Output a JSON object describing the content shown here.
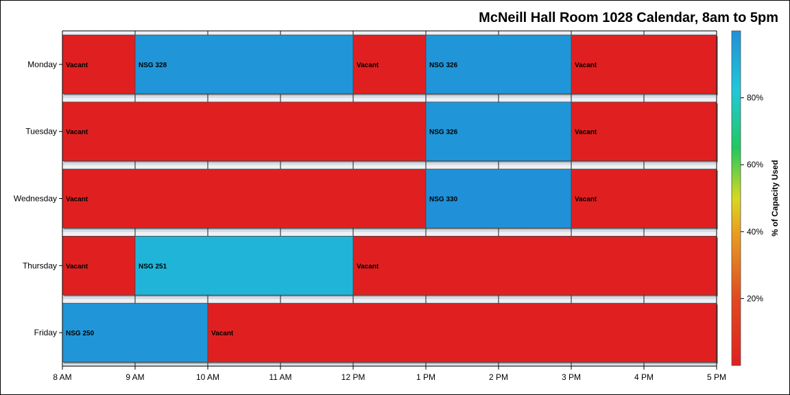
{
  "chart_data": {
    "type": "bar",
    "orientation": "horizontal",
    "title": "McNeill Hall Room 1028 Calendar, 8am to 5pm",
    "x_range": [
      8,
      17
    ],
    "x_ticks": [
      {
        "value": 8,
        "label": "8 AM"
      },
      {
        "value": 9,
        "label": "9 AM"
      },
      {
        "value": 10,
        "label": "10 AM"
      },
      {
        "value": 11,
        "label": "11 AM"
      },
      {
        "value": 12,
        "label": "12 PM"
      },
      {
        "value": 13,
        "label": "1 PM"
      },
      {
        "value": 14,
        "label": "2 PM"
      },
      {
        "value": 15,
        "label": "3 PM"
      },
      {
        "value": 16,
        "label": "4 PM"
      },
      {
        "value": 17,
        "label": "5 PM"
      }
    ],
    "categories": [
      "Monday",
      "Tuesday",
      "Wednesday",
      "Thursday",
      "Friday"
    ],
    "blocks": [
      {
        "day": "Monday",
        "start": 8,
        "end": 9,
        "label": "Vacant",
        "capacity_pct": 0
      },
      {
        "day": "Monday",
        "start": 9,
        "end": 12,
        "label": "NSG 328",
        "capacity_pct": 98
      },
      {
        "day": "Monday",
        "start": 12,
        "end": 13,
        "label": "Vacant",
        "capacity_pct": 0
      },
      {
        "day": "Monday",
        "start": 13,
        "end": 15,
        "label": "NSG 326",
        "capacity_pct": 98
      },
      {
        "day": "Monday",
        "start": 15,
        "end": 17,
        "label": "Vacant",
        "capacity_pct": 0
      },
      {
        "day": "Tuesday",
        "start": 8,
        "end": 13,
        "label": "Vacant",
        "capacity_pct": 0
      },
      {
        "day": "Tuesday",
        "start": 13,
        "end": 15,
        "label": "NSG 326",
        "capacity_pct": 98
      },
      {
        "day": "Tuesday",
        "start": 15,
        "end": 17,
        "label": "Vacant",
        "capacity_pct": 0
      },
      {
        "day": "Wednesday",
        "start": 8,
        "end": 13,
        "label": "Vacant",
        "capacity_pct": 0
      },
      {
        "day": "Wednesday",
        "start": 13,
        "end": 15,
        "label": "NSG 330",
        "capacity_pct": 100
      },
      {
        "day": "Wednesday",
        "start": 15,
        "end": 17,
        "label": "Vacant",
        "capacity_pct": 0
      },
      {
        "day": "Thursday",
        "start": 8,
        "end": 9,
        "label": "Vacant",
        "capacity_pct": 0
      },
      {
        "day": "Thursday",
        "start": 9,
        "end": 12,
        "label": "NSG 251",
        "capacity_pct": 88
      },
      {
        "day": "Thursday",
        "start": 12,
        "end": 17,
        "label": "Vacant",
        "capacity_pct": 0
      },
      {
        "day": "Friday",
        "start": 8,
        "end": 10,
        "label": "NSG 250",
        "capacity_pct": 98
      },
      {
        "day": "Friday",
        "start": 10,
        "end": 17,
        "label": "Vacant",
        "capacity_pct": 0
      }
    ],
    "colorbar": {
      "label": "% of Capacity Used",
      "range": [
        0,
        100
      ],
      "ticks": [
        {
          "value": 20,
          "label": "20%"
        },
        {
          "value": 40,
          "label": "40%"
        },
        {
          "value": 60,
          "label": "60%"
        },
        {
          "value": 80,
          "label": "80%"
        }
      ],
      "stops": [
        {
          "value": 0,
          "color": "#e02020"
        },
        {
          "value": 20,
          "color": "#e04a20"
        },
        {
          "value": 40,
          "color": "#e8a020"
        },
        {
          "value": 50,
          "color": "#d8d820"
        },
        {
          "value": 65,
          "color": "#20c860"
        },
        {
          "value": 82,
          "color": "#20c8d8"
        },
        {
          "value": 100,
          "color": "#2090d8"
        }
      ]
    },
    "grid": true,
    "legend": "right"
  }
}
